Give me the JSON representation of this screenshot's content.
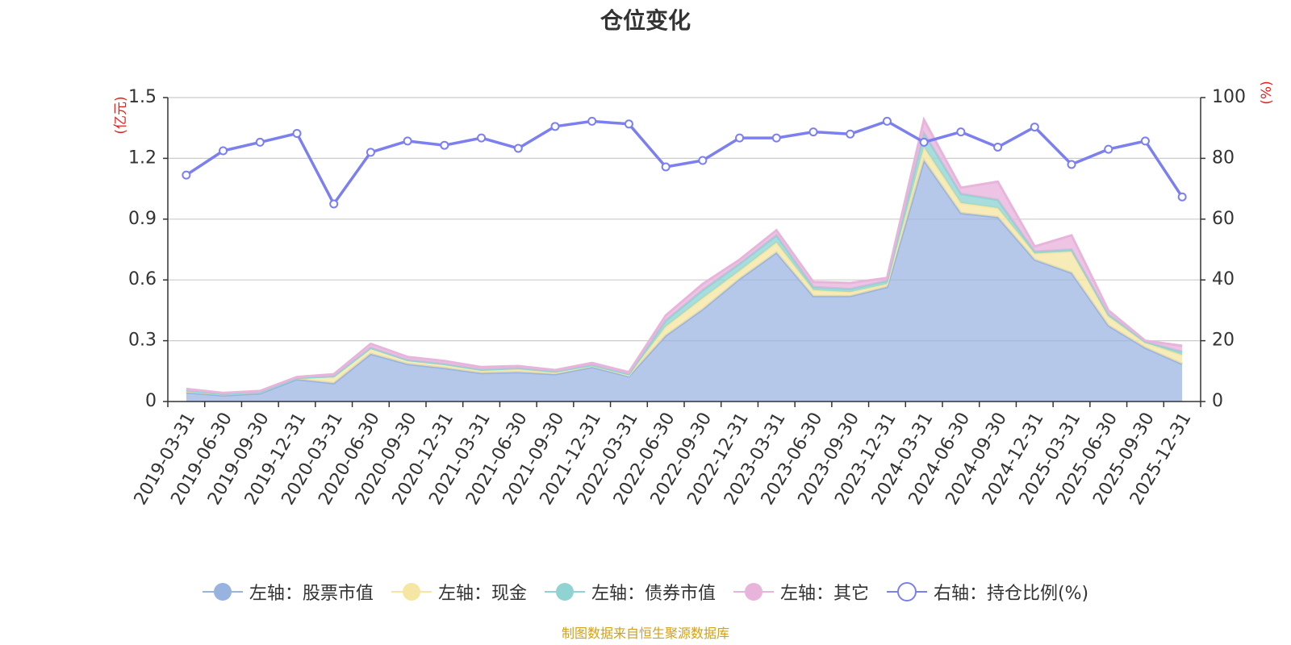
{
  "chart_data": {
    "type": "area",
    "title": "仓位变化",
    "left_unit": "(亿元)",
    "right_unit": "(%)",
    "x": [
      "2019-03-31",
      "2019-06-30",
      "2019-09-30",
      "2019-12-31",
      "2020-03-31",
      "2020-06-30",
      "2020-09-30",
      "2020-12-31",
      "2021-03-31",
      "2021-06-30",
      "2021-09-30",
      "2021-12-31",
      "2022-03-31",
      "2022-06-30",
      "2022-09-30",
      "2022-12-31",
      "2023-03-31",
      "2023-06-30",
      "2023-09-30",
      "2023-12-31",
      "2024-03-31",
      "2024-06-30",
      "2024-09-30",
      "2024-12-31",
      "2025-03-31",
      "2025-06-30",
      "2025-09-30",
      "2025-12-31"
    ],
    "left_axis": {
      "min": 0,
      "max": 1.5,
      "ticks": [
        "0",
        "0.3",
        "0.6",
        "0.9",
        "1.2",
        "1.5"
      ]
    },
    "right_axis": {
      "min": 0,
      "max": 100,
      "ticks": [
        "0",
        "20",
        "40",
        "60",
        "80",
        "100"
      ]
    },
    "stacked_series": [
      {
        "name": "左轴：股票市值",
        "color": "#98b3e0",
        "values": [
          0.045,
          0.03,
          0.04,
          0.11,
          0.09,
          0.235,
          0.185,
          0.165,
          0.14,
          0.145,
          0.135,
          0.17,
          0.125,
          0.325,
          0.455,
          0.605,
          0.735,
          0.52,
          0.52,
          0.565,
          1.19,
          0.93,
          0.91,
          0.7,
          0.635,
          0.375,
          0.265,
          0.185
        ]
      },
      {
        "name": "左轴：现金",
        "color": "#f5e6a3",
        "values": [
          0.01,
          0.007,
          0.008,
          0.006,
          0.035,
          0.03,
          0.02,
          0.02,
          0.012,
          0.015,
          0.01,
          0.008,
          0.005,
          0.045,
          0.055,
          0.04,
          0.05,
          0.03,
          0.02,
          0.015,
          0.065,
          0.05,
          0.045,
          0.03,
          0.105,
          0.045,
          0.025,
          0.045
        ]
      },
      {
        "name": "左轴：债券市值",
        "color": "#8fd3d3",
        "values": [
          0,
          0,
          0,
          0,
          0,
          0,
          0,
          0,
          0.005,
          0.005,
          0.003,
          0.002,
          0.005,
          0.03,
          0.04,
          0.035,
          0.035,
          0.015,
          0.015,
          0.015,
          0.07,
          0.045,
          0.04,
          0.01,
          0.01,
          0.01,
          0.005,
          0.015
        ]
      },
      {
        "name": "左轴：其它",
        "color": "#e8b4dc",
        "values": [
          0.007,
          0.005,
          0.004,
          0.005,
          0.01,
          0.02,
          0.015,
          0.015,
          0.013,
          0.01,
          0.007,
          0.01,
          0.01,
          0.025,
          0.03,
          0.02,
          0.025,
          0.025,
          0.03,
          0.015,
          0.065,
          0.03,
          0.09,
          0.025,
          0.07,
          0.02,
          0.005,
          0.03
        ]
      }
    ],
    "line_series": {
      "name": "右轴：持仓比例(%)",
      "color": "#7b7ff0",
      "values": [
        74.5,
        82.5,
        85.3,
        88.2,
        65,
        82,
        85.7,
        84.3,
        86.7,
        83.3,
        90.5,
        92.2,
        91.3,
        77.2,
        79.3,
        86.7,
        86.7,
        88.7,
        88,
        92.2,
        85.3,
        88.7,
        83.7,
        90.3,
        78,
        83,
        85.7,
        67.3
      ]
    },
    "grid": true,
    "legend_position": "bottom"
  },
  "source_text": "制图数据来自恒生聚源数据库",
  "source_color": "#d4a017"
}
